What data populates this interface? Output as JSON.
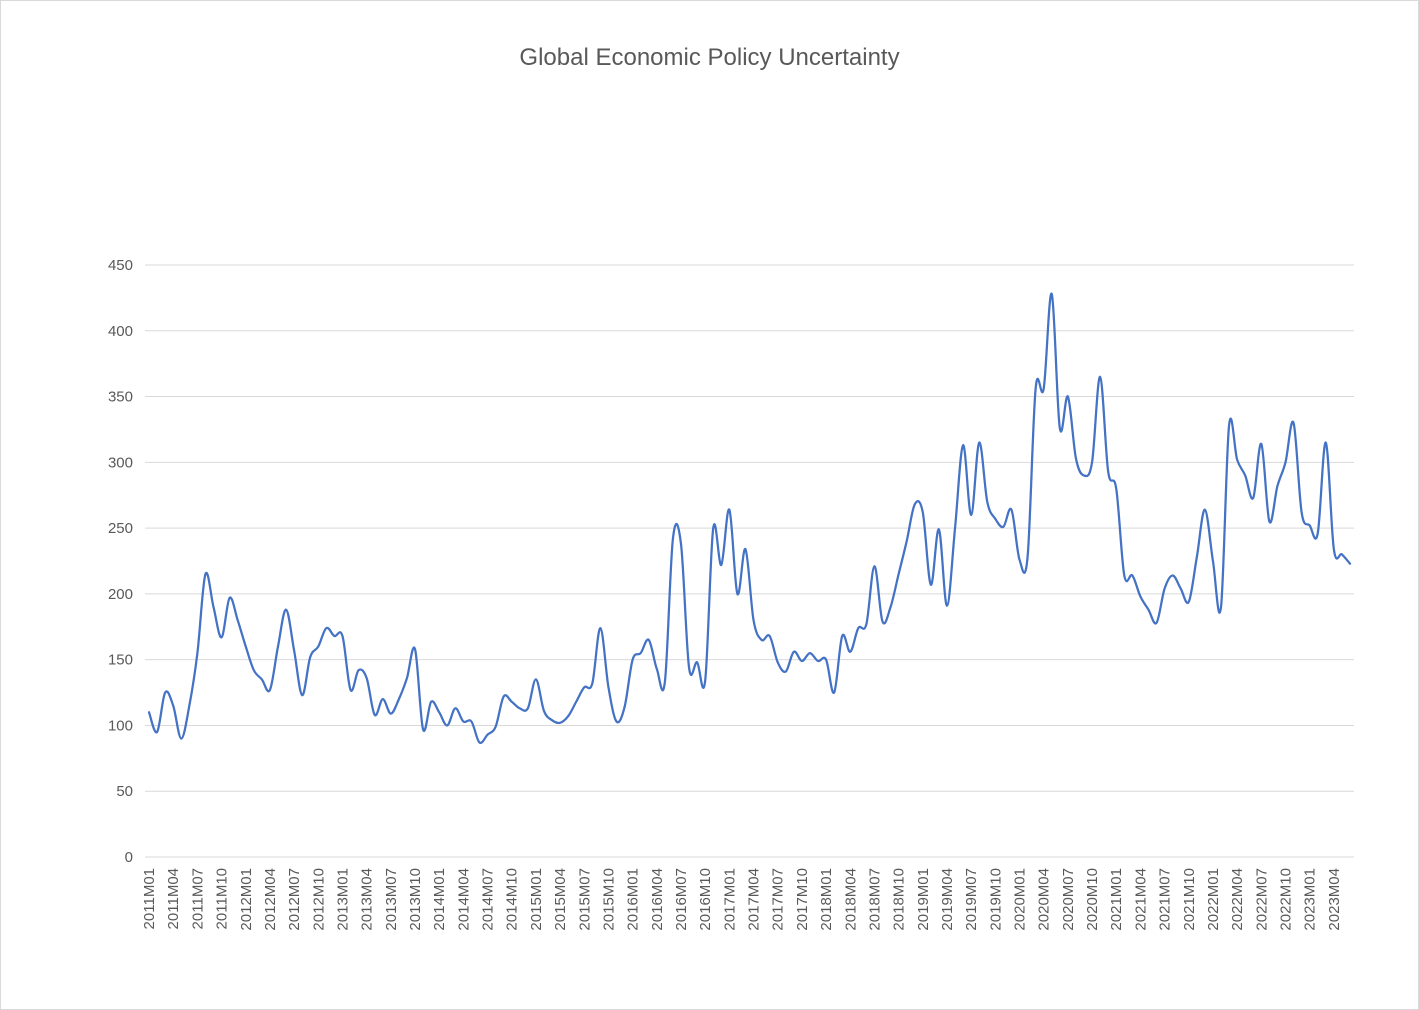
{
  "chart_data": {
    "type": "line",
    "title": "Global Economic Policy Uncertainty",
    "xlabel": "",
    "ylabel": "",
    "ylim": [
      0,
      450
    ],
    "yticks": [
      "0",
      "50",
      "100",
      "150",
      "200",
      "250",
      "300",
      "350",
      "400",
      "450"
    ],
    "grid": true,
    "legend": "none",
    "colors": {
      "line": "#4472c4",
      "grid": "#d9d9d9",
      "text": "#595959"
    },
    "tick_labels": [
      "2011M01",
      "2011M04",
      "2011M07",
      "2011M10",
      "2012M01",
      "2012M04",
      "2012M07",
      "2012M10",
      "2013M01",
      "2013M04",
      "2013M07",
      "2013M10",
      "2014M01",
      "2014M04",
      "2014M07",
      "2014M10",
      "2015M01",
      "2015M04",
      "2015M07",
      "2015M10",
      "2016M01",
      "2016M04",
      "2016M07",
      "2016M10",
      "2017M01",
      "2017M04",
      "2017M07",
      "2017M10",
      "2018M01",
      "2018M04",
      "2018M07",
      "2018M10",
      "2019M01",
      "2019M04",
      "2019M07",
      "2019M10",
      "2020M01",
      "2020M04",
      "2020M07",
      "2020M10",
      "2021M01",
      "2021M04",
      "2021M07",
      "2021M10",
      "2022M01",
      "2022M04",
      "2022M07",
      "2022M10",
      "2023M01",
      "2023M04"
    ],
    "series": [
      {
        "name": "Global Economic Policy Uncertainty",
        "start": "2011M01",
        "values": [
          110,
          95,
          125,
          115,
          90,
          115,
          155,
          215,
          190,
          167,
          197,
          180,
          160,
          142,
          135,
          127,
          160,
          188,
          157,
          123,
          152,
          160,
          174,
          168,
          168,
          127,
          142,
          136,
          108,
          120,
          109,
          120,
          136,
          158,
          97,
          118,
          110,
          100,
          113,
          103,
          103,
          87,
          93,
          99,
          122,
          118,
          113,
          113,
          135,
          111,
          104,
          102,
          107,
          118,
          129,
          132,
          174,
          129,
          103,
          114,
          150,
          155,
          165,
          143,
          133,
          242,
          238,
          144,
          148,
          134,
          250,
          222,
          264,
          200,
          234,
          180,
          165,
          168,
          148,
          141,
          156,
          149,
          155,
          149,
          150,
          125,
          168,
          156,
          174,
          177,
          221,
          179,
          190,
          215,
          240,
          268,
          262,
          207,
          249,
          191,
          250,
          313,
          260,
          315,
          270,
          257,
          251,
          264,
          226,
          228,
          356,
          356,
          428,
          326,
          350,
          303,
          290,
          300,
          365,
          293,
          280,
          214,
          214,
          198,
          188,
          178,
          204,
          214,
          204,
          194,
          228,
          264,
          225,
          190,
          328,
          302,
          290,
          273,
          314,
          255,
          282,
          300,
          330,
          262,
          252,
          246,
          315,
          234,
          230,
          223
        ]
      }
    ]
  }
}
